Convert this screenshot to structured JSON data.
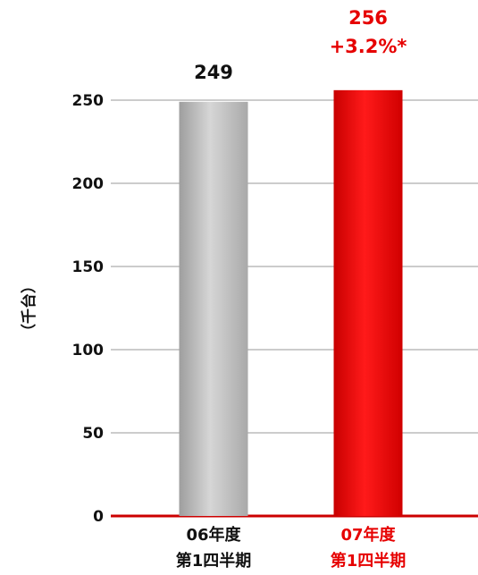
{
  "chart_data": {
    "type": "bar",
    "ylabel": "（千台）",
    "ylim": [
      0,
      250
    ],
    "yticks": [
      0,
      50,
      100,
      150,
      200,
      250
    ],
    "grid": true,
    "categories": [
      {
        "line1": "06年度",
        "line2": "第1四半期"
      },
      {
        "line1": "07年度",
        "line2": "第1四半期"
      }
    ],
    "series": [
      {
        "values": [
          249,
          256
        ]
      }
    ],
    "value_labels": [
      "249",
      "256"
    ],
    "annotations": [
      "+3.2%*"
    ],
    "colors": {
      "bar_prev": "#b8b8b8",
      "bar_curr": "#e60000",
      "label_prev": "#111111",
      "label_curr": "#e60000",
      "baseline": "#cc0000",
      "grid": "#999999"
    }
  }
}
